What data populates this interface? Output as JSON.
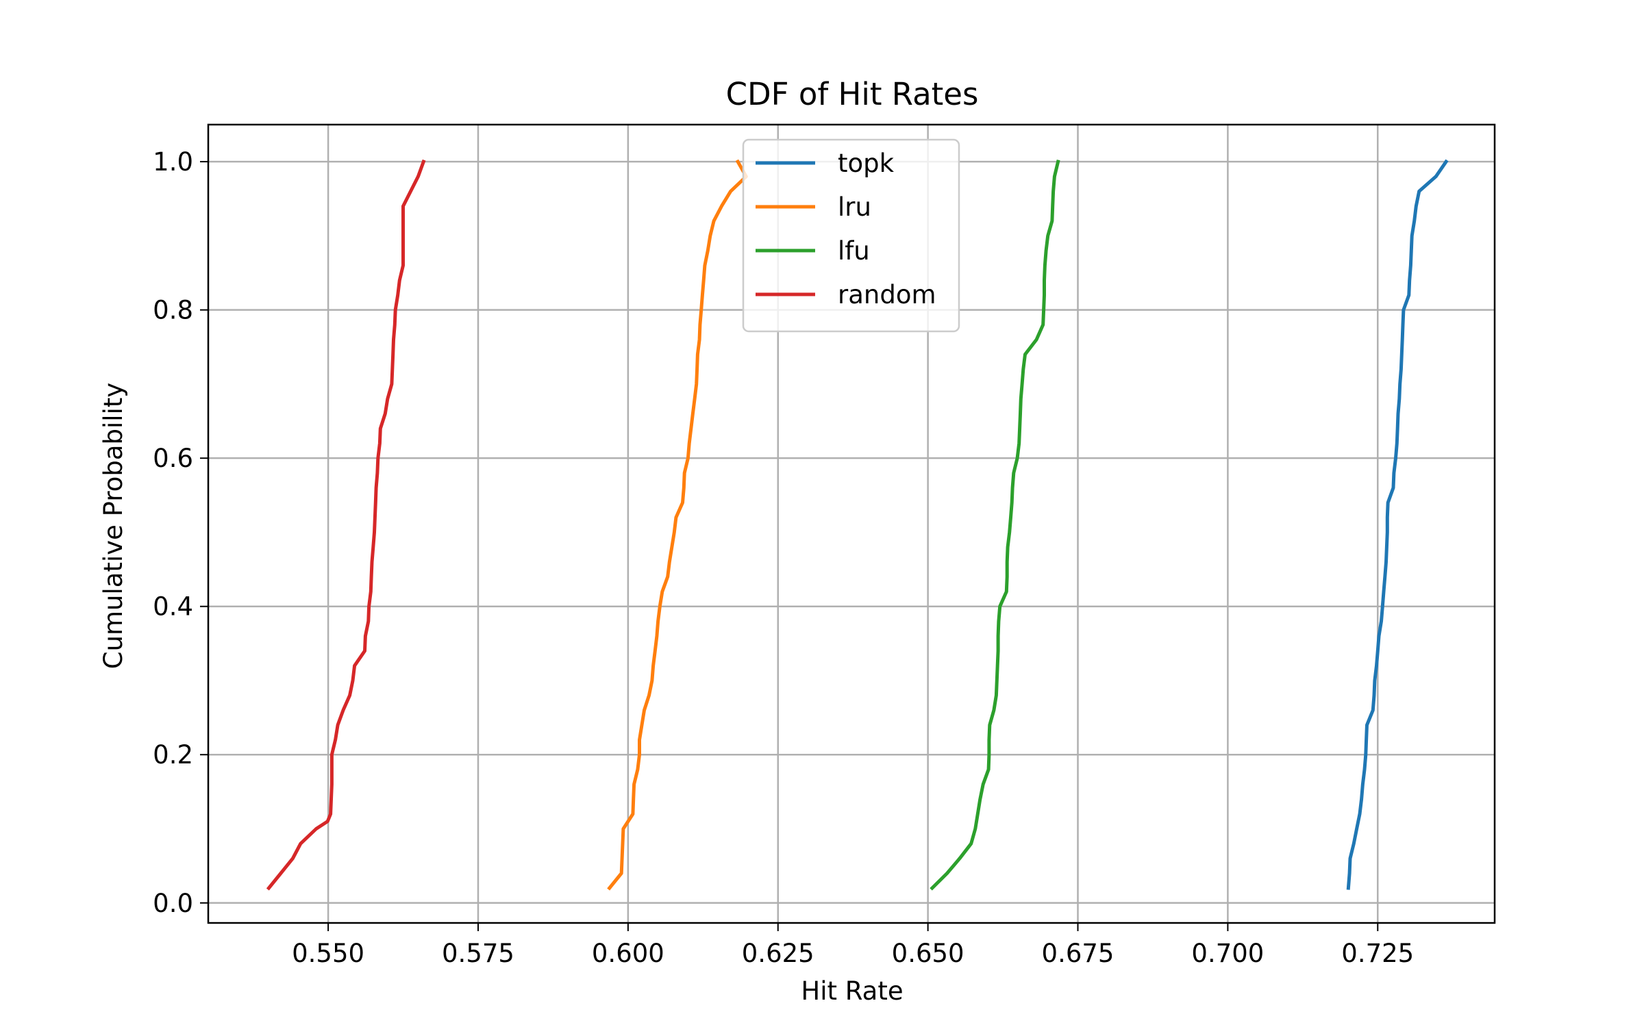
{
  "chart_data": {
    "type": "line",
    "title": "CDF of Hit Rates",
    "xlabel": "Hit Rate",
    "ylabel": "Cumulative Probability",
    "xlim": [
      0.53,
      0.7445
    ],
    "ylim": [
      -0.027,
      1.05
    ],
    "xticks": [
      0.55,
      0.575,
      0.6,
      0.625,
      0.65,
      0.675,
      0.7,
      0.725
    ],
    "xtick_labels": [
      "0.550",
      "0.575",
      "0.600",
      "0.625",
      "0.650",
      "0.675",
      "0.700",
      "0.725"
    ],
    "yticks": [
      0.0,
      0.2,
      0.4,
      0.6,
      0.8,
      1.0
    ],
    "ytick_labels": [
      "0.0",
      "0.2",
      "0.4",
      "0.6",
      "0.8",
      "1.0"
    ],
    "grid": true,
    "legend_position": "top-center",
    "series": [
      {
        "name": "topk",
        "color": "#1f77b4",
        "points": [
          [
            0.7201,
            0.02
          ],
          [
            0.7203,
            0.04
          ],
          [
            0.7204,
            0.06
          ],
          [
            0.721,
            0.08
          ],
          [
            0.7215,
            0.1
          ],
          [
            0.722,
            0.12
          ],
          [
            0.7223,
            0.14
          ],
          [
            0.7225,
            0.16
          ],
          [
            0.7228,
            0.18
          ],
          [
            0.723,
            0.2
          ],
          [
            0.7231,
            0.22
          ],
          [
            0.7232,
            0.24
          ],
          [
            0.7242,
            0.26
          ],
          [
            0.7244,
            0.28
          ],
          [
            0.7245,
            0.3
          ],
          [
            0.7248,
            0.32
          ],
          [
            0.725,
            0.34
          ],
          [
            0.7252,
            0.36
          ],
          [
            0.7256,
            0.38
          ],
          [
            0.7258,
            0.4
          ],
          [
            0.726,
            0.42
          ],
          [
            0.7262,
            0.44
          ],
          [
            0.7264,
            0.46
          ],
          [
            0.7265,
            0.48
          ],
          [
            0.7266,
            0.5
          ],
          [
            0.7266,
            0.52
          ],
          [
            0.7267,
            0.54
          ],
          [
            0.7276,
            0.56
          ],
          [
            0.7277,
            0.58
          ],
          [
            0.728,
            0.6
          ],
          [
            0.7282,
            0.62
          ],
          [
            0.7283,
            0.64
          ],
          [
            0.7284,
            0.66
          ],
          [
            0.7286,
            0.68
          ],
          [
            0.7287,
            0.7
          ],
          [
            0.7289,
            0.72
          ],
          [
            0.729,
            0.74
          ],
          [
            0.7291,
            0.76
          ],
          [
            0.7292,
            0.78
          ],
          [
            0.7293,
            0.8
          ],
          [
            0.7302,
            0.82
          ],
          [
            0.7303,
            0.84
          ],
          [
            0.7305,
            0.86
          ],
          [
            0.7306,
            0.88
          ],
          [
            0.7307,
            0.9
          ],
          [
            0.7311,
            0.92
          ],
          [
            0.7314,
            0.94
          ],
          [
            0.7319,
            0.96
          ],
          [
            0.7347,
            0.98
          ],
          [
            0.7364,
            1.0
          ]
        ]
      },
      {
        "name": "lru",
        "color": "#ff7f0e",
        "points": [
          [
            0.5969,
            0.02
          ],
          [
            0.5989,
            0.04
          ],
          [
            0.599,
            0.06
          ],
          [
            0.5991,
            0.08
          ],
          [
            0.5992,
            0.1
          ],
          [
            0.6008,
            0.12
          ],
          [
            0.6009,
            0.14
          ],
          [
            0.601,
            0.16
          ],
          [
            0.6016,
            0.18
          ],
          [
            0.6019,
            0.2
          ],
          [
            0.6019,
            0.22
          ],
          [
            0.6023,
            0.24
          ],
          [
            0.6027,
            0.26
          ],
          [
            0.6035,
            0.28
          ],
          [
            0.604,
            0.3
          ],
          [
            0.6042,
            0.32
          ],
          [
            0.6045,
            0.34
          ],
          [
            0.6048,
            0.36
          ],
          [
            0.605,
            0.38
          ],
          [
            0.6053,
            0.4
          ],
          [
            0.6057,
            0.42
          ],
          [
            0.6066,
            0.44
          ],
          [
            0.6069,
            0.46
          ],
          [
            0.6073,
            0.48
          ],
          [
            0.6077,
            0.5
          ],
          [
            0.608,
            0.52
          ],
          [
            0.6091,
            0.54
          ],
          [
            0.6093,
            0.56
          ],
          [
            0.6094,
            0.58
          ],
          [
            0.61,
            0.6
          ],
          [
            0.6102,
            0.62
          ],
          [
            0.6105,
            0.64
          ],
          [
            0.6108,
            0.66
          ],
          [
            0.6111,
            0.68
          ],
          [
            0.6114,
            0.7
          ],
          [
            0.6115,
            0.72
          ],
          [
            0.6116,
            0.74
          ],
          [
            0.6119,
            0.76
          ],
          [
            0.612,
            0.78
          ],
          [
            0.6122,
            0.8
          ],
          [
            0.6124,
            0.82
          ],
          [
            0.6126,
            0.84
          ],
          [
            0.6128,
            0.86
          ],
          [
            0.6133,
            0.88
          ],
          [
            0.6137,
            0.9
          ],
          [
            0.6143,
            0.92
          ],
          [
            0.6156,
            0.94
          ],
          [
            0.6171,
            0.96
          ],
          [
            0.6197,
            0.98
          ],
          [
            0.6183,
            1.0
          ]
        ]
      },
      {
        "name": "lfu",
        "color": "#2ca02c",
        "points": [
          [
            0.6507,
            0.02
          ],
          [
            0.6532,
            0.04
          ],
          [
            0.6553,
            0.06
          ],
          [
            0.6572,
            0.08
          ],
          [
            0.6579,
            0.1
          ],
          [
            0.6583,
            0.12
          ],
          [
            0.6587,
            0.14
          ],
          [
            0.6592,
            0.16
          ],
          [
            0.6601,
            0.18
          ],
          [
            0.6602,
            0.2
          ],
          [
            0.6602,
            0.22
          ],
          [
            0.6603,
            0.24
          ],
          [
            0.661,
            0.26
          ],
          [
            0.6614,
            0.28
          ],
          [
            0.6615,
            0.3
          ],
          [
            0.6616,
            0.32
          ],
          [
            0.6617,
            0.34
          ],
          [
            0.6617,
            0.36
          ],
          [
            0.6618,
            0.38
          ],
          [
            0.662,
            0.4
          ],
          [
            0.6631,
            0.42
          ],
          [
            0.6632,
            0.44
          ],
          [
            0.6632,
            0.46
          ],
          [
            0.6633,
            0.48
          ],
          [
            0.6636,
            0.5
          ],
          [
            0.6638,
            0.52
          ],
          [
            0.664,
            0.54
          ],
          [
            0.6641,
            0.56
          ],
          [
            0.6643,
            0.58
          ],
          [
            0.6649,
            0.6
          ],
          [
            0.6652,
            0.62
          ],
          [
            0.6653,
            0.64
          ],
          [
            0.6654,
            0.66
          ],
          [
            0.6655,
            0.68
          ],
          [
            0.6657,
            0.7
          ],
          [
            0.6659,
            0.72
          ],
          [
            0.6662,
            0.74
          ],
          [
            0.6681,
            0.76
          ],
          [
            0.6692,
            0.78
          ],
          [
            0.6693,
            0.8
          ],
          [
            0.6694,
            0.82
          ],
          [
            0.6694,
            0.84
          ],
          [
            0.6695,
            0.86
          ],
          [
            0.6697,
            0.88
          ],
          [
            0.67,
            0.9
          ],
          [
            0.6707,
            0.92
          ],
          [
            0.6708,
            0.94
          ],
          [
            0.6709,
            0.96
          ],
          [
            0.6711,
            0.98
          ],
          [
            0.6717,
            1.0
          ]
        ]
      },
      {
        "name": "random",
        "color": "#d62728",
        "points": [
          [
            0.5401,
            0.02
          ],
          [
            0.5421,
            0.04
          ],
          [
            0.5441,
            0.06
          ],
          [
            0.5454,
            0.08
          ],
          [
            0.548,
            0.1
          ],
          [
            0.5499,
            0.11
          ],
          [
            0.5504,
            0.12
          ],
          [
            0.5505,
            0.14
          ],
          [
            0.5506,
            0.16
          ],
          [
            0.5506,
            0.18
          ],
          [
            0.5506,
            0.2
          ],
          [
            0.5512,
            0.22
          ],
          [
            0.5516,
            0.24
          ],
          [
            0.5525,
            0.26
          ],
          [
            0.5536,
            0.28
          ],
          [
            0.5541,
            0.3
          ],
          [
            0.5544,
            0.32
          ],
          [
            0.5561,
            0.34
          ],
          [
            0.5562,
            0.36
          ],
          [
            0.5567,
            0.38
          ],
          [
            0.5568,
            0.4
          ],
          [
            0.5571,
            0.42
          ],
          [
            0.5572,
            0.44
          ],
          [
            0.5573,
            0.46
          ],
          [
            0.5575,
            0.48
          ],
          [
            0.5577,
            0.5
          ],
          [
            0.5578,
            0.52
          ],
          [
            0.5579,
            0.54
          ],
          [
            0.558,
            0.56
          ],
          [
            0.5582,
            0.58
          ],
          [
            0.5583,
            0.6
          ],
          [
            0.5586,
            0.62
          ],
          [
            0.5587,
            0.64
          ],
          [
            0.5595,
            0.66
          ],
          [
            0.5599,
            0.68
          ],
          [
            0.5606,
            0.7
          ],
          [
            0.5607,
            0.72
          ],
          [
            0.5608,
            0.74
          ],
          [
            0.5609,
            0.76
          ],
          [
            0.5611,
            0.78
          ],
          [
            0.5612,
            0.8
          ],
          [
            0.5616,
            0.82
          ],
          [
            0.5619,
            0.84
          ],
          [
            0.5625,
            0.86
          ],
          [
            0.5625,
            0.88
          ],
          [
            0.5625,
            0.9
          ],
          [
            0.5625,
            0.92
          ],
          [
            0.5625,
            0.94
          ],
          [
            0.565,
            0.98
          ],
          [
            0.5659,
            1.0
          ]
        ]
      }
    ]
  }
}
